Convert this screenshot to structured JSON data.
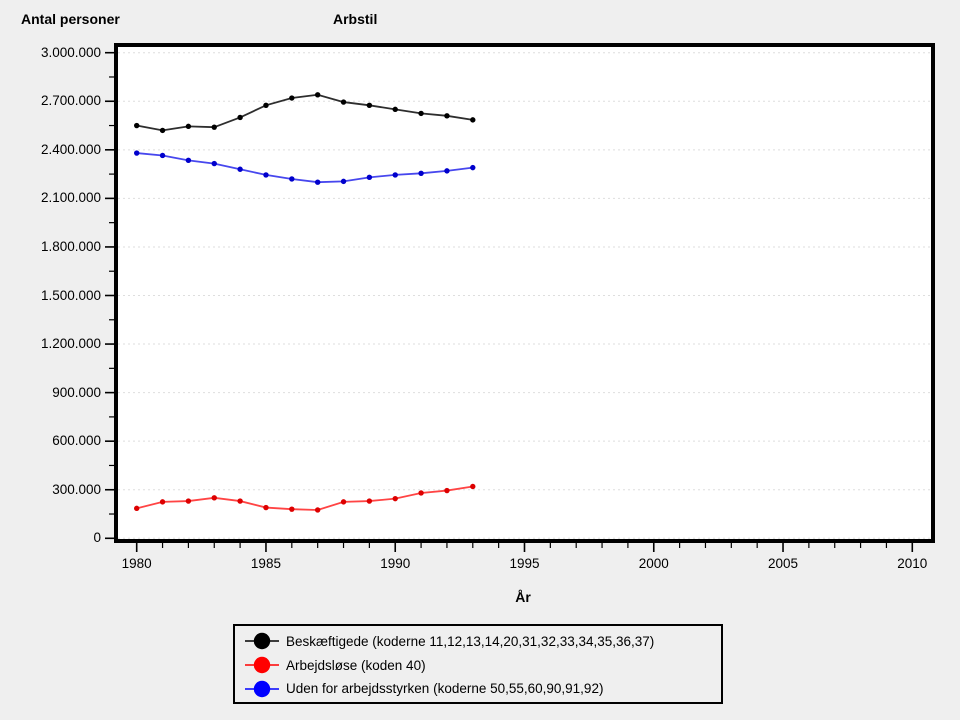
{
  "page": {
    "background": "#efefef",
    "plot_background": "#ffffff"
  },
  "header": {
    "y_axis_title": "Antal personer",
    "chart_title": "Arbstil"
  },
  "chart_data": {
    "type": "line",
    "title": "Arbstil",
    "xlabel": "År",
    "ylabel": "Antal personer",
    "x": [
      1980,
      1981,
      1982,
      1983,
      1984,
      1985,
      1986,
      1987,
      1988,
      1989,
      1990,
      1991,
      1992,
      1993
    ],
    "series": [
      {
        "name": "Beskæftigede (koderne 11,12,13,14,20,31,32,33,34,35,36,37)",
        "marker_color": "#000000",
        "line_color": "#2e2e2e",
        "values": [
          2550000,
          2520000,
          2545000,
          2540000,
          2600000,
          2675000,
          2720000,
          2740000,
          2695000,
          2675000,
          2650000,
          2625000,
          2610000,
          2585000
        ]
      },
      {
        "name": "Arbejdsløse (koden 40)",
        "marker_color": "#dd0000",
        "line_color": "#ff4444",
        "values": [
          185000,
          225000,
          230000,
          250000,
          230000,
          190000,
          180000,
          175000,
          225000,
          230000,
          245000,
          280000,
          295000,
          320000
        ]
      },
      {
        "name": "Uden for arbejdsstyrken (koderne 50,55,60,90,91,92)",
        "marker_color": "#0000cc",
        "line_color": "#4747ee",
        "values": [
          2380000,
          2365000,
          2335000,
          2315000,
          2280000,
          2245000,
          2220000,
          2200000,
          2205000,
          2230000,
          2245000,
          2255000,
          2270000,
          2290000
        ]
      }
    ],
    "xlim": [
      1979.1,
      2010.9
    ],
    "ylim": [
      0,
      3000000
    ],
    "x_major_ticks": [
      1980,
      1985,
      1990,
      1995,
      2000,
      2005,
      2010
    ],
    "x_minor_tick_step": 1,
    "y_major_tick_step": 300000,
    "y_minor_tick_step": 150000,
    "y_tick_labels": [
      "0",
      "300.000",
      "600.000",
      "900.000",
      "1.200.000",
      "1.500.000",
      "1.800.000",
      "2.100.000",
      "2.400.000",
      "2.700.000",
      "3.000.000"
    ],
    "grid": "horizontal",
    "grid_style": "dashed",
    "grid_color": "#dedede",
    "legend_position": "bottom"
  },
  "legend": {
    "items": [
      {
        "label": "Beskæftigede (koderne 11,12,13,14,20,31,32,33,34,35,36,37)",
        "color": "#000000"
      },
      {
        "label": "Arbejdsløse (koden 40)",
        "color": "#ff0000"
      },
      {
        "label": "Uden for arbejdsstyrken (koderne 50,55,60,90,91,92)",
        "color": "#0000ff"
      }
    ]
  }
}
